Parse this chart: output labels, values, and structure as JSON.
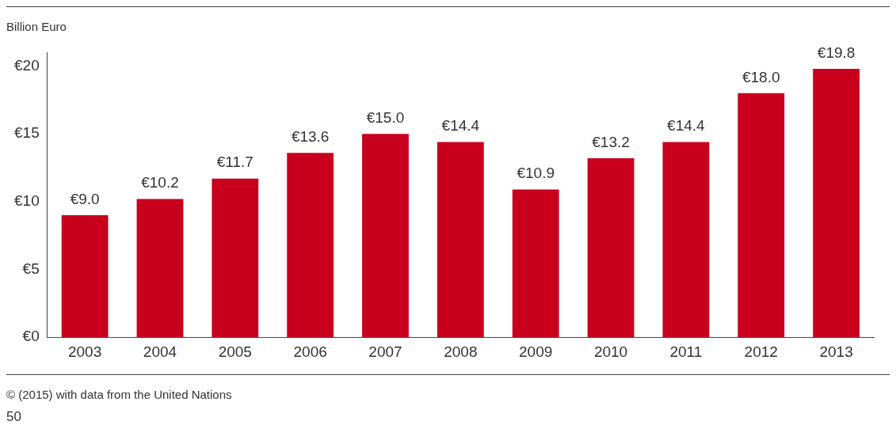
{
  "chart_data": {
    "type": "bar",
    "ylabel": "Billion Euro",
    "categories": [
      "2003",
      "2004",
      "2005",
      "2006",
      "2007",
      "2008",
      "2009",
      "2010",
      "2011",
      "2012",
      "2013"
    ],
    "values": [
      9.0,
      10.2,
      11.7,
      13.6,
      15.0,
      14.4,
      10.9,
      13.2,
      14.4,
      18.0,
      19.8
    ],
    "value_labels": [
      "€9.0",
      "€10.2",
      "€11.7",
      "€13.6",
      "€15.0",
      "€14.4",
      "€10.9",
      "€13.2",
      "€14.4",
      "€18.0",
      "€19.8"
    ],
    "color": "#c8001e",
    "ylim": [
      0,
      21
    ],
    "yticks": [
      {
        "value": 0,
        "label": "€0"
      },
      {
        "value": 5,
        "label": "€5"
      },
      {
        "value": 10,
        "label": "€10"
      },
      {
        "value": 15,
        "label": "€15"
      },
      {
        "value": 20,
        "label": "€20"
      }
    ],
    "grid": false,
    "legend": false,
    "annotations": [
      "© (2015) with data from the United Nations",
      "50"
    ]
  }
}
